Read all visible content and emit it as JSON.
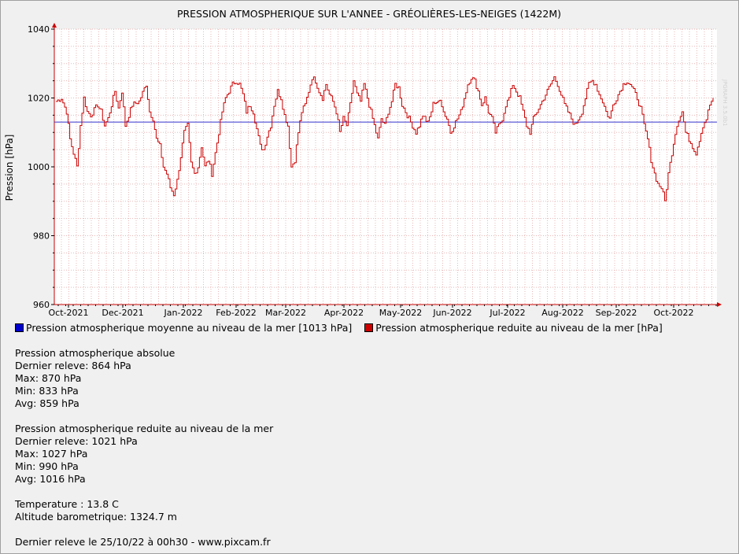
{
  "chart_data": {
    "type": "line",
    "title": "PRESSION ATMOSPHERIQUE SUR L'ANNEE - GRÉOLIÈRES-LES-NEIGES (1422M)",
    "ylabel": "Pression [hPa]",
    "xlabel": "",
    "ylim": [
      960,
      1040
    ],
    "y_ticks": [
      "960",
      "980",
      "1000",
      "1020",
      "1040"
    ],
    "x_ticks": [
      "Oct-2021",
      "Dec-2021",
      "Jan-2022",
      "Feb-2022",
      "Mar-2022",
      "Apr-2022",
      "May-2022",
      "Jun-2022",
      "Jul-2022",
      "Aug-2022",
      "Sep-2022",
      "Oct-2022"
    ],
    "grid": true,
    "legend_position": "bottom-left",
    "series": [
      {
        "name": "Pression atmospherique moyenne au niveau de la mer [1013 hPa]",
        "color": "#0000cc",
        "mean": 1013
      },
      {
        "name": "Pression atmospherique reduite au niveau de la mer [hPa]",
        "color": "#cc0000"
      }
    ]
  },
  "stats": {
    "absolue": {
      "title": "Pression atmospherique absolue",
      "dernier": "Dernier releve: 864 hPa",
      "max": "Max: 870 hPa",
      "min": "Min: 833 hPa",
      "avg": "Avg: 859 hPa"
    },
    "reduite": {
      "title": "Pression atmospherique reduite au niveau de la mer",
      "dernier": "Dernier releve: 1021 hPa",
      "max": "Max: 1027 hPa",
      "min": "Min: 990 hPa",
      "avg": "Avg: 1016 hPa"
    },
    "temperature": "Temperature : 13.8 C",
    "altitude": "Altitude barometrique: 1324.7 m",
    "footer": "Dernier releve le 25/10/22 à 00h30 - www.pixcam.fr"
  },
  "watermark": "JPGRAPH 3.5.0b1"
}
